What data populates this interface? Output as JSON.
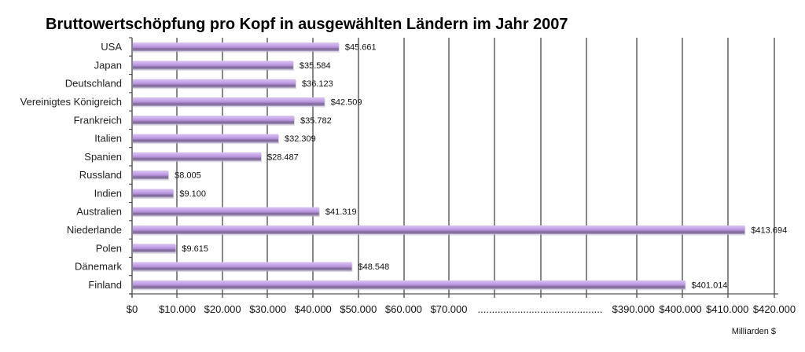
{
  "chart_data": {
    "type": "bar",
    "orientation": "horizontal",
    "title": "Bruttowertschöpfung pro Kopf in ausgewählten Ländern im Jahr 2007",
    "xlabel": "Milliarden $",
    "ylabel": "",
    "categories": [
      "USA",
      "Japan",
      "Deutschland",
      "Vereinigtes Königreich",
      "Frankreich",
      "Italien",
      "Spanien",
      "Russland",
      "Indien",
      "Australien",
      "Niederlande",
      "Polen",
      "Dänemark",
      "Finland"
    ],
    "values": [
      45661,
      35584,
      36123,
      42509,
      35782,
      32309,
      28487,
      8005,
      9100,
      41319,
      413694,
      9615,
      48548,
      401014
    ],
    "value_labels": [
      "$45.661",
      "$35.584",
      "$36.123",
      "$42.509",
      "$35.782",
      "$32.309",
      "$28.487",
      "$8.005",
      "$9.100",
      "$41.319",
      "$413.694",
      "$9.615",
      "$48.548",
      "$401.014"
    ],
    "axis": {
      "broken": true,
      "segments": [
        {
          "from": 0,
          "to": 70000
        },
        {
          "from": 380000,
          "to": 420000
        }
      ],
      "ticks": [
        {
          "value": 0,
          "label": "$0"
        },
        {
          "value": 10000,
          "label": "$10.000"
        },
        {
          "value": 20000,
          "label": "$20.000"
        },
        {
          "value": 30000,
          "label": "$30.000"
        },
        {
          "value": 40000,
          "label": "$40.000"
        },
        {
          "value": 50000,
          "label": "$50.000"
        },
        {
          "value": 60000,
          "label": "$60.000"
        },
        {
          "value": 70000,
          "label": "$70.000"
        },
        {
          "value": 390000,
          "label": "$390.000"
        },
        {
          "value": 400000,
          "label": "$400.000"
        },
        {
          "value": 410000,
          "label": "$410.000"
        },
        {
          "value": 420000,
          "label": "$420.000"
        }
      ],
      "break_label": "............................................",
      "grid": true
    },
    "colors": {
      "bar_light": "#c9a9ea",
      "bar_dark": "#7b6494",
      "bar_shadow": "#b8b0c8",
      "grid": "#000000",
      "axis": "#555555"
    }
  }
}
